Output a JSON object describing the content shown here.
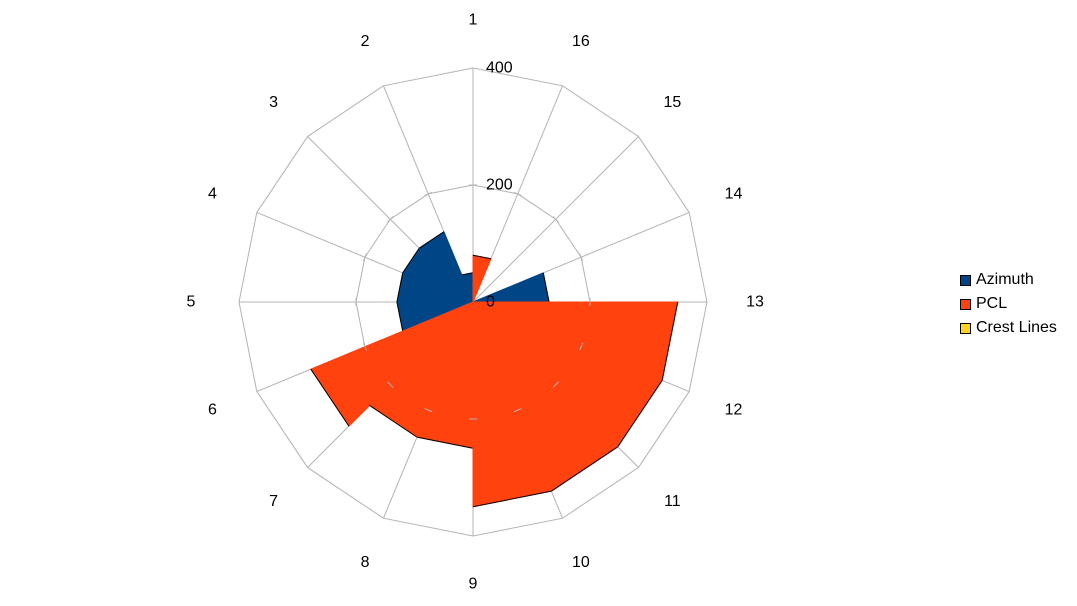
{
  "chart_data": {
    "type": "polar-area",
    "categories": [
      "1",
      "2",
      "3",
      "4",
      "5",
      "6",
      "7",
      "8",
      "9",
      "10",
      "11",
      "12",
      "13",
      "14",
      "15",
      "16"
    ],
    "series": [
      {
        "name": "Azimuth",
        "color": "#004586",
        "values": [
          50,
          130,
          130,
          130,
          130,
          130,
          130,
          130,
          130,
          130,
          130,
          130,
          130,
          0,
          0,
          0
        ]
      },
      {
        "name": "PCL",
        "color": "#ff420e",
        "values": [
          0,
          0,
          0,
          0,
          0,
          300,
          250,
          250,
          350,
          350,
          350,
          350,
          0,
          0,
          0,
          80
        ]
      },
      {
        "name": "Crest Lines",
        "color": "#ffd320",
        "values": [
          0,
          0,
          0,
          0,
          0,
          0,
          0,
          0,
          0,
          0,
          0,
          0,
          0,
          0,
          0,
          0
        ]
      }
    ],
    "radial_ticks": [
      "0",
      "200",
      "400"
    ],
    "rmax": 400,
    "grid": true,
    "legend": "right"
  }
}
